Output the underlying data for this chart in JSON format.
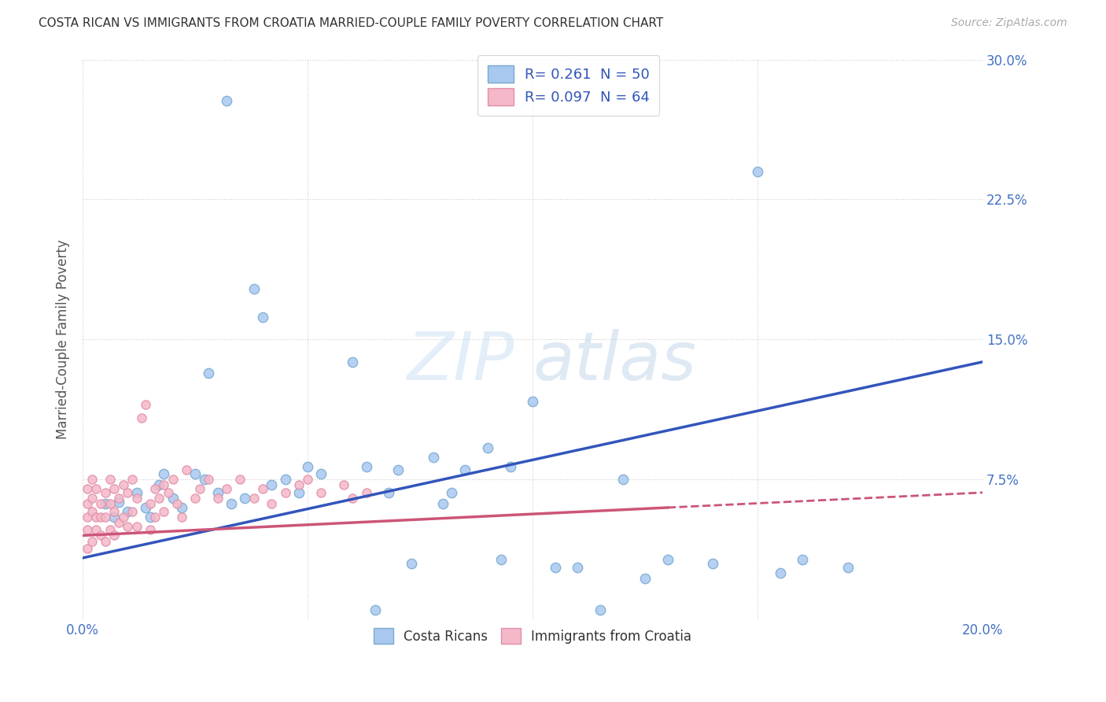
{
  "title": "COSTA RICAN VS IMMIGRANTS FROM CROATIA MARRIED-COUPLE FAMILY POVERTY CORRELATION CHART",
  "source": "Source: ZipAtlas.com",
  "ylabel": "Married-Couple Family Poverty",
  "xlim": [
    0.0,
    0.2
  ],
  "ylim": [
    0.0,
    0.3
  ],
  "xticks": [
    0.0,
    0.05,
    0.1,
    0.15,
    0.2
  ],
  "yticks": [
    0.0,
    0.075,
    0.15,
    0.225,
    0.3
  ],
  "yticklabels_right": [
    "",
    "7.5%",
    "15.0%",
    "22.5%",
    "30.0%"
  ],
  "background_color": "#ffffff",
  "grid_color": "#cccccc",
  "watermark": "ZIPatlas",
  "blue_marker_color": "#a8c8f0",
  "blue_marker_edge": "#7aaad0",
  "pink_marker_color": "#f5b8c8",
  "pink_marker_edge": "#e090a8",
  "blue_line_color": "#3355bb",
  "pink_line_color": "#cc5577",
  "blue_line_y0": 0.033,
  "blue_line_y1": 0.138,
  "pink_line_y0": 0.045,
  "pink_line_y1": 0.068,
  "pink_line_solid_end": 0.13,
  "tick_label_color": "#4472c4",
  "legend1_r": "0.261",
  "legend1_n": "50",
  "legend2_r": "0.097",
  "legend2_n": "64",
  "costa_rican_x": [
    0.032,
    0.15,
    0.038,
    0.04,
    0.028,
    0.1,
    0.078,
    0.155,
    0.065,
    0.115,
    0.005,
    0.007,
    0.008,
    0.01,
    0.012,
    0.014,
    0.015,
    0.017,
    0.018,
    0.02,
    0.022,
    0.025,
    0.027,
    0.03,
    0.033,
    0.036,
    0.042,
    0.045,
    0.048,
    0.05,
    0.053,
    0.06,
    0.063,
    0.068,
    0.07,
    0.073,
    0.08,
    0.082,
    0.085,
    0.09,
    0.093,
    0.095,
    0.105,
    0.11,
    0.12,
    0.125,
    0.13,
    0.14,
    0.16,
    0.17
  ],
  "costa_rican_y": [
    0.278,
    0.24,
    0.177,
    0.162,
    0.132,
    0.117,
    0.087,
    0.025,
    0.005,
    0.005,
    0.062,
    0.055,
    0.063,
    0.058,
    0.068,
    0.06,
    0.055,
    0.072,
    0.078,
    0.065,
    0.06,
    0.078,
    0.075,
    0.068,
    0.062,
    0.065,
    0.072,
    0.075,
    0.068,
    0.082,
    0.078,
    0.138,
    0.082,
    0.068,
    0.08,
    0.03,
    0.062,
    0.068,
    0.08,
    0.092,
    0.032,
    0.082,
    0.028,
    0.028,
    0.075,
    0.022,
    0.032,
    0.03,
    0.032,
    0.028
  ],
  "croatia_x": [
    0.001,
    0.001,
    0.001,
    0.001,
    0.001,
    0.002,
    0.002,
    0.002,
    0.002,
    0.003,
    0.003,
    0.003,
    0.004,
    0.004,
    0.004,
    0.005,
    0.005,
    0.005,
    0.006,
    0.006,
    0.006,
    0.007,
    0.007,
    0.007,
    0.008,
    0.008,
    0.009,
    0.009,
    0.01,
    0.01,
    0.011,
    0.011,
    0.012,
    0.012,
    0.013,
    0.014,
    0.015,
    0.015,
    0.016,
    0.016,
    0.017,
    0.018,
    0.018,
    0.019,
    0.02,
    0.021,
    0.022,
    0.023,
    0.025,
    0.026,
    0.028,
    0.03,
    0.032,
    0.035,
    0.038,
    0.04,
    0.042,
    0.045,
    0.048,
    0.05,
    0.053,
    0.058,
    0.06,
    0.063
  ],
  "croatia_y": [
    0.048,
    0.055,
    0.062,
    0.07,
    0.038,
    0.075,
    0.058,
    0.042,
    0.065,
    0.055,
    0.07,
    0.048,
    0.062,
    0.055,
    0.045,
    0.068,
    0.055,
    0.042,
    0.075,
    0.062,
    0.048,
    0.07,
    0.058,
    0.045,
    0.065,
    0.052,
    0.072,
    0.055,
    0.068,
    0.05,
    0.075,
    0.058,
    0.065,
    0.05,
    0.108,
    0.115,
    0.062,
    0.048,
    0.07,
    0.055,
    0.065,
    0.072,
    0.058,
    0.068,
    0.075,
    0.062,
    0.055,
    0.08,
    0.065,
    0.07,
    0.075,
    0.065,
    0.07,
    0.075,
    0.065,
    0.07,
    0.062,
    0.068,
    0.072,
    0.075,
    0.068,
    0.072,
    0.065,
    0.068
  ]
}
